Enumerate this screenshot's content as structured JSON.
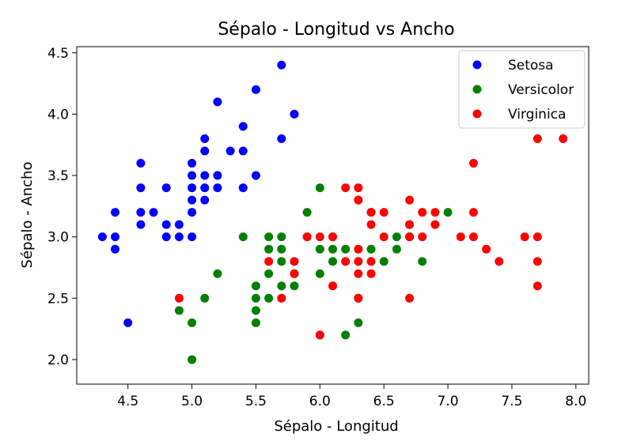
{
  "chart_data": {
    "type": "scatter",
    "title": "Sépalo - Longitud vs Ancho",
    "xlabel": "Sépalo - Longitud",
    "ylabel": "Sépalo - Ancho",
    "xlim": [
      4.1,
      8.1
    ],
    "ylim": [
      1.8,
      4.55
    ],
    "xticks": [
      "4.5",
      "5.0",
      "5.5",
      "6.0",
      "6.5",
      "7.0",
      "7.5",
      "8.0"
    ],
    "yticks": [
      "2.0",
      "2.5",
      "3.0",
      "3.5",
      "4.0",
      "4.5"
    ],
    "grid": false,
    "legend_position": "top-right",
    "series": [
      {
        "name": "Setosa",
        "color": "#0000ff",
        "points": [
          [
            4.3,
            3.0
          ],
          [
            4.4,
            3.0
          ],
          [
            4.4,
            2.9
          ],
          [
            4.4,
            3.2
          ],
          [
            4.5,
            2.3
          ],
          [
            4.6,
            3.1
          ],
          [
            4.6,
            3.2
          ],
          [
            4.6,
            3.4
          ],
          [
            4.6,
            3.6
          ],
          [
            4.7,
            3.2
          ],
          [
            4.8,
            3.0
          ],
          [
            4.8,
            3.1
          ],
          [
            4.8,
            3.4
          ],
          [
            4.9,
            3.0
          ],
          [
            4.9,
            3.1
          ],
          [
            5.0,
            3.0
          ],
          [
            5.0,
            3.2
          ],
          [
            5.0,
            3.3
          ],
          [
            5.0,
            3.4
          ],
          [
            5.0,
            3.5
          ],
          [
            5.0,
            3.6
          ],
          [
            5.1,
            3.3
          ],
          [
            5.1,
            3.4
          ],
          [
            5.1,
            3.5
          ],
          [
            5.1,
            3.7
          ],
          [
            5.1,
            3.8
          ],
          [
            5.2,
            3.4
          ],
          [
            5.2,
            3.5
          ],
          [
            5.2,
            4.1
          ],
          [
            5.3,
            3.7
          ],
          [
            5.4,
            3.4
          ],
          [
            5.4,
            3.7
          ],
          [
            5.4,
            3.9
          ],
          [
            5.5,
            3.5
          ],
          [
            5.5,
            4.2
          ],
          [
            5.7,
            3.8
          ],
          [
            5.7,
            4.4
          ],
          [
            5.8,
            4.0
          ]
        ]
      },
      {
        "name": "Versicolor",
        "color": "#008000",
        "points": [
          [
            4.9,
            2.4
          ],
          [
            5.0,
            2.0
          ],
          [
            5.0,
            2.3
          ],
          [
            5.1,
            2.5
          ],
          [
            5.2,
            2.7
          ],
          [
            5.4,
            3.0
          ],
          [
            5.5,
            2.3
          ],
          [
            5.5,
            2.4
          ],
          [
            5.5,
            2.5
          ],
          [
            5.5,
            2.6
          ],
          [
            5.6,
            2.5
          ],
          [
            5.6,
            2.7
          ],
          [
            5.6,
            2.9
          ],
          [
            5.6,
            3.0
          ],
          [
            5.7,
            2.6
          ],
          [
            5.7,
            2.8
          ],
          [
            5.7,
            2.9
          ],
          [
            5.7,
            3.0
          ],
          [
            5.8,
            2.6
          ],
          [
            5.8,
            2.7
          ],
          [
            5.9,
            3.0
          ],
          [
            5.9,
            3.2
          ],
          [
            6.0,
            2.2
          ],
          [
            6.0,
            2.7
          ],
          [
            6.0,
            2.9
          ],
          [
            6.0,
            3.4
          ],
          [
            6.1,
            2.8
          ],
          [
            6.1,
            2.9
          ],
          [
            6.1,
            3.0
          ],
          [
            6.2,
            2.2
          ],
          [
            6.2,
            2.9
          ],
          [
            6.3,
            2.3
          ],
          [
            6.3,
            2.5
          ],
          [
            6.3,
            3.3
          ],
          [
            6.4,
            2.9
          ],
          [
            6.4,
            3.2
          ],
          [
            6.5,
            2.8
          ],
          [
            6.6,
            2.9
          ],
          [
            6.6,
            3.0
          ],
          [
            6.7,
            3.0
          ],
          [
            6.7,
            3.1
          ],
          [
            6.8,
            2.8
          ],
          [
            6.9,
            3.1
          ],
          [
            7.0,
            3.2
          ]
        ]
      },
      {
        "name": "Virginica",
        "color": "#ff0000",
        "points": [
          [
            4.9,
            2.5
          ],
          [
            5.6,
            2.8
          ],
          [
            5.7,
            2.5
          ],
          [
            5.8,
            2.7
          ],
          [
            5.8,
            2.8
          ],
          [
            5.9,
            3.0
          ],
          [
            6.0,
            2.2
          ],
          [
            6.0,
            3.0
          ],
          [
            6.1,
            2.6
          ],
          [
            6.1,
            3.0
          ],
          [
            6.2,
            2.8
          ],
          [
            6.2,
            3.4
          ],
          [
            6.3,
            2.5
          ],
          [
            6.3,
            2.7
          ],
          [
            6.3,
            2.8
          ],
          [
            6.3,
            2.9
          ],
          [
            6.3,
            3.3
          ],
          [
            6.3,
            3.4
          ],
          [
            6.4,
            2.7
          ],
          [
            6.4,
            2.8
          ],
          [
            6.4,
            3.1
          ],
          [
            6.4,
            3.2
          ],
          [
            6.5,
            3.0
          ],
          [
            6.5,
            3.2
          ],
          [
            6.7,
            2.5
          ],
          [
            6.7,
            3.0
          ],
          [
            6.7,
            3.1
          ],
          [
            6.7,
            3.3
          ],
          [
            6.8,
            3.0
          ],
          [
            6.8,
            3.2
          ],
          [
            6.9,
            3.1
          ],
          [
            6.9,
            3.2
          ],
          [
            7.1,
            3.0
          ],
          [
            7.2,
            3.0
          ],
          [
            7.2,
            3.2
          ],
          [
            7.2,
            3.6
          ],
          [
            7.3,
            2.9
          ],
          [
            7.4,
            2.8
          ],
          [
            7.6,
            3.0
          ],
          [
            7.7,
            2.6
          ],
          [
            7.7,
            2.8
          ],
          [
            7.7,
            3.0
          ],
          [
            7.7,
            3.8
          ],
          [
            7.9,
            3.8
          ]
        ]
      }
    ]
  }
}
